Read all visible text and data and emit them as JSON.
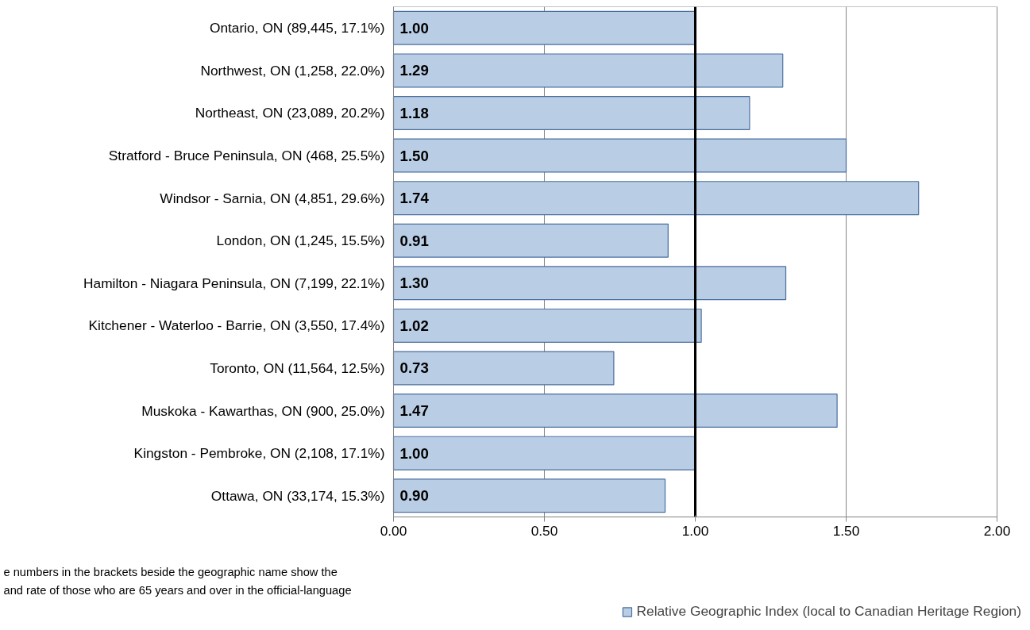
{
  "chart_data": {
    "type": "bar",
    "orientation": "horizontal",
    "categories": [
      "Ontario, ON (89,445, 17.1%)",
      "Northwest, ON (1,258, 22.0%)",
      "Northeast, ON (23,089, 20.2%)",
      "Stratford - Bruce Peninsula, ON (468, 25.5%)",
      "Windsor - Sarnia, ON (4,851, 29.6%)",
      "London, ON (1,245, 15.5%)",
      "Hamilton - Niagara Peninsula, ON (7,199, 22.1%)",
      "Kitchener - Waterloo - Barrie, ON (3,550, 17.4%)",
      "Toronto, ON (11,564, 12.5%)",
      "Muskoka - Kawarthas, ON (900, 25.0%)",
      "Kingston - Pembroke, ON (2,108, 17.1%)",
      "Ottawa, ON (33,174, 15.3%)"
    ],
    "series": [
      {
        "name": "Relative Geographic Index (local to Canadian Heritage Region)",
        "color": "#b9cde5",
        "values": [
          1.0,
          1.29,
          1.18,
          1.5,
          1.74,
          0.91,
          1.3,
          1.02,
          0.73,
          1.47,
          1.0,
          0.9
        ],
        "value_labels": [
          "1.00",
          "1.29",
          "1.18",
          "1.50",
          "1.74",
          "0.91",
          "1.30",
          "1.02",
          "0.73",
          "1.47",
          "1.00",
          "0.90"
        ]
      }
    ],
    "xlim": [
      0,
      2
    ],
    "xticks": [
      {
        "value": 0,
        "label": "0.00"
      },
      {
        "value": 0.5,
        "label": "0.50"
      },
      {
        "value": 1,
        "label": "1.00"
      },
      {
        "value": 1.5,
        "label": "1.50"
      },
      {
        "value": 2,
        "label": "2.00"
      }
    ],
    "grid": "x",
    "legend": "bottom right",
    "ref_lines": [
      {
        "axis": "x",
        "value": 1,
        "label": null,
        "color": "#000000"
      }
    ],
    "annotations": [
      "e numbers in the brackets beside the geographic name show the",
      "and rate of those who are 65 years and over in the official-language"
    ]
  }
}
